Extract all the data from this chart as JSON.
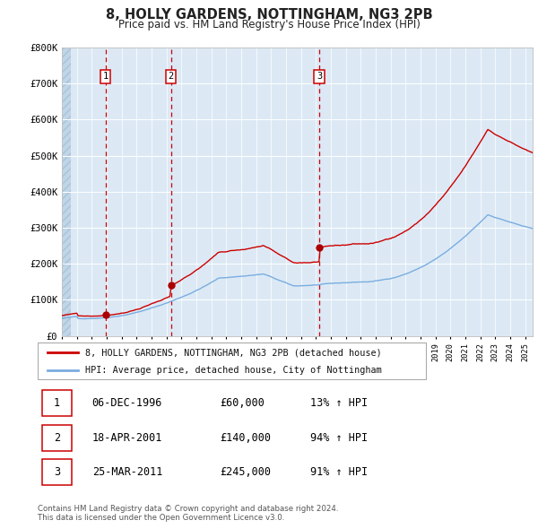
{
  "title": "8, HOLLY GARDENS, NOTTINGHAM, NG3 2PB",
  "subtitle": "Price paid vs. HM Land Registry's House Price Index (HPI)",
  "background_color": "#ffffff",
  "plot_bg_color": "#dce9f5",
  "grid_color": "#ffffff",
  "red_line_color": "#cc0000",
  "blue_line_color": "#7aade0",
  "sale_marker_color": "#aa0000",
  "dashed_line_color": "#cc0000",
  "label_box_color": "#cc0000",
  "ylim": [
    0,
    800000
  ],
  "yticks": [
    0,
    100000,
    200000,
    300000,
    400000,
    500000,
    600000,
    700000,
    800000
  ],
  "ytick_labels": [
    "£0",
    "£100K",
    "£200K",
    "£300K",
    "£400K",
    "£500K",
    "£600K",
    "£700K",
    "£800K"
  ],
  "xstart_year": 1994,
  "xend_year": 2025,
  "sales": [
    {
      "year": 1996.92,
      "price": 60000,
      "label": "1"
    },
    {
      "year": 2001.3,
      "price": 140000,
      "label": "2"
    },
    {
      "year": 2011.23,
      "price": 245000,
      "label": "3"
    }
  ],
  "sale_table": [
    {
      "num": "1",
      "date": "06-DEC-1996",
      "price": "£60,000",
      "pct": "13% ↑ HPI"
    },
    {
      "num": "2",
      "date": "18-APR-2001",
      "price": "£140,000",
      "pct": "94% ↑ HPI"
    },
    {
      "num": "3",
      "date": "25-MAR-2011",
      "price": "£245,000",
      "pct": "91% ↑ HPI"
    }
  ],
  "legend_red": "8, HOLLY GARDENS, NOTTINGHAM, NG3 2PB (detached house)",
  "legend_blue": "HPI: Average price, detached house, City of Nottingham",
  "footer": "Contains HM Land Registry data © Crown copyright and database right 2024.\nThis data is licensed under the Open Government Licence v3.0."
}
